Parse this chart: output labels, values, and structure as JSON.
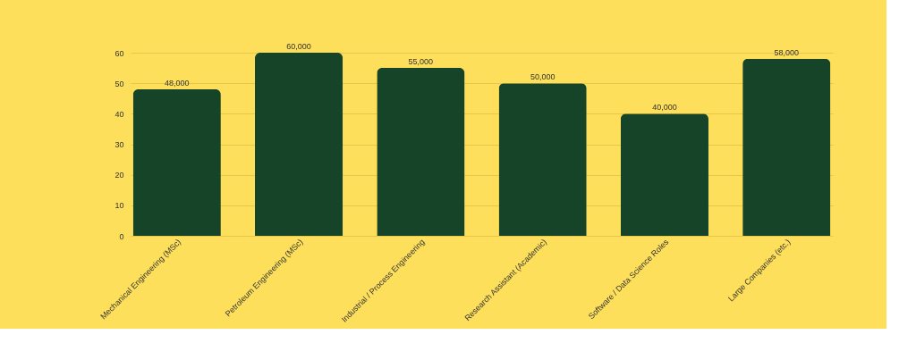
{
  "chart_data": {
    "type": "bar",
    "categories": [
      "Mechanical Engineering (MSc)",
      "Petroleum Engineering (MSc)",
      "Industrial / Process Engineering",
      "Research Assistant (Academic)",
      "Software / Data Science Roles",
      "Large Companies (etc.)"
    ],
    "values": [
      48,
      60,
      55,
      50,
      40,
      58
    ],
    "color": "#154429",
    "ylim": [
      0,
      60
    ],
    "yticks": [
      0,
      10,
      20,
      30,
      40,
      50,
      60
    ],
    "grid": "y",
    "annotations": [
      {
        "text": "48,000",
        "x": "Mechanical Engineering (MSc)",
        "y": 48
      },
      {
        "text": "60,000",
        "x": "Petroleum Engineering (MSc)",
        "y": 60
      },
      {
        "text": "55,000",
        "x": "Industrial / Process Engineering",
        "y": 55
      },
      {
        "text": "50,000",
        "x": "Research Assistant (Academic)",
        "y": 50
      },
      {
        "text": "40,000",
        "x": "Software / Data Science Roles",
        "y": 40
      },
      {
        "text": "58,000",
        "x": "Large Companies (etc.)",
        "y": 58
      }
    ]
  }
}
